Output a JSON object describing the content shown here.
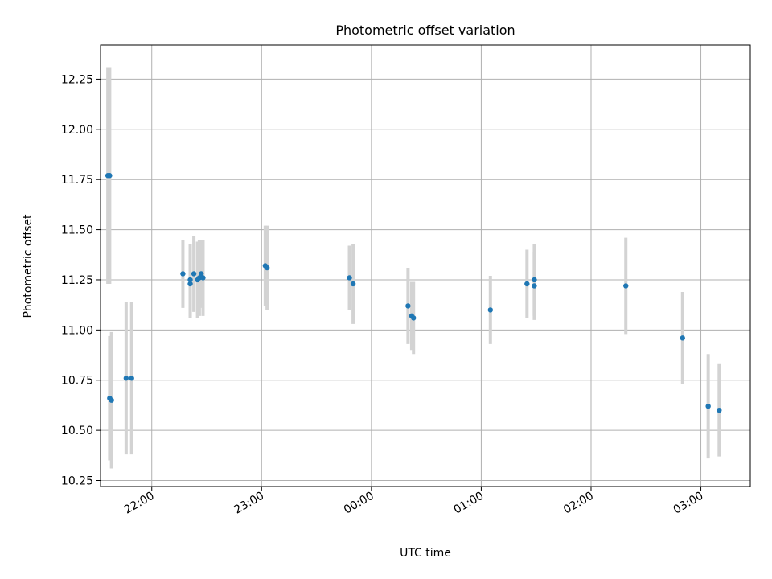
{
  "chart_data": {
    "type": "scatter",
    "title": "Photometric offset variation",
    "xlabel": "UTC time",
    "ylabel": "Photometric offset",
    "x_axis": {
      "kind": "time",
      "range": [
        "21:32",
        "03:27"
      ],
      "ticks": [
        {
          "value": "22:00",
          "label": "22:00"
        },
        {
          "value": "23:00",
          "label": "23:00"
        },
        {
          "value": "00:00",
          "label": "00:00"
        },
        {
          "value": "01:00",
          "label": "01:00"
        },
        {
          "value": "02:00",
          "label": "02:00"
        },
        {
          "value": "03:00",
          "label": "03:00"
        }
      ]
    },
    "y_axis": {
      "range": [
        10.22,
        12.42
      ],
      "ticks": [
        10.25,
        10.5,
        10.75,
        11.0,
        11.25,
        11.5,
        11.75,
        12.0,
        12.25
      ],
      "tick_labels": [
        "10.25",
        "10.50",
        "10.75",
        "11.00",
        "11.25",
        "11.50",
        "11.75",
        "12.00",
        "12.25"
      ]
    },
    "grid": true,
    "marker_color": "#1f77b4",
    "errorbar_color": "#d3d3d3",
    "points": [
      {
        "x": "21:36",
        "y": 11.77,
        "err": 0.54
      },
      {
        "x": "21:37",
        "y": 11.77,
        "err": 0.54
      },
      {
        "x": "21:37",
        "y": 10.66,
        "err": 0.31
      },
      {
        "x": "21:38",
        "y": 10.65,
        "err": 0.34
      },
      {
        "x": "21:46",
        "y": 10.76,
        "err": 0.38
      },
      {
        "x": "21:49",
        "y": 10.76,
        "err": 0.38
      },
      {
        "x": "22:17",
        "y": 11.28,
        "err": 0.17
      },
      {
        "x": "22:21",
        "y": 11.25,
        "err": 0.18
      },
      {
        "x": "22:21",
        "y": 11.23,
        "err": 0.17
      },
      {
        "x": "22:23",
        "y": 11.28,
        "err": 0.19
      },
      {
        "x": "22:25",
        "y": 11.25,
        "err": 0.19
      },
      {
        "x": "22:26",
        "y": 11.26,
        "err": 0.19
      },
      {
        "x": "22:27",
        "y": 11.28,
        "err": 0.17
      },
      {
        "x": "22:28",
        "y": 11.26,
        "err": 0.19
      },
      {
        "x": "23:02",
        "y": 11.32,
        "err": 0.2
      },
      {
        "x": "23:03",
        "y": 11.31,
        "err": 0.21
      },
      {
        "x": "23:48",
        "y": 11.26,
        "err": 0.16
      },
      {
        "x": "23:50",
        "y": 11.23,
        "err": 0.2
      },
      {
        "x": "00:20",
        "y": 11.12,
        "err": 0.19
      },
      {
        "x": "00:22",
        "y": 11.07,
        "err": 0.17
      },
      {
        "x": "00:23",
        "y": 11.06,
        "err": 0.18
      },
      {
        "x": "01:05",
        "y": 11.1,
        "err": 0.17
      },
      {
        "x": "01:25",
        "y": 11.23,
        "err": 0.17
      },
      {
        "x": "01:29",
        "y": 11.25,
        "err": 0.18
      },
      {
        "x": "01:29",
        "y": 11.22,
        "err": 0.17
      },
      {
        "x": "02:19",
        "y": 11.22,
        "err": 0.24
      },
      {
        "x": "02:50",
        "y": 10.96,
        "err": 0.23
      },
      {
        "x": "03:04",
        "y": 10.62,
        "err": 0.26
      },
      {
        "x": "03:10",
        "y": 10.6,
        "err": 0.23
      }
    ]
  }
}
